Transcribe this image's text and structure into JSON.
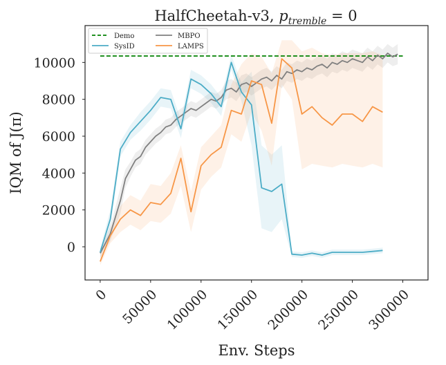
{
  "chart_data": {
    "type": "line",
    "title": "HalfCheetah-v3, p_tremble = 0",
    "title_text": "HalfCheetah-v3, ",
    "title_math_var": "p",
    "title_math_sub": "tremble",
    "title_math_rest": " = 0",
    "xlabel": "Env. Steps",
    "ylabel": "IQM of J(π)",
    "xlim": [
      -15000,
      325000
    ],
    "ylim": [
      -1800,
      12000
    ],
    "xticks": [
      0,
      50000,
      100000,
      150000,
      200000,
      250000,
      300000
    ],
    "xtick_labels": [
      "0",
      "50000",
      "100000",
      "150000",
      "200000",
      "250000",
      "300000"
    ],
    "yticks": [
      0,
      2000,
      4000,
      6000,
      8000,
      10000
    ],
    "ytick_labels": [
      "0",
      "2000",
      "4000",
      "6000",
      "8000",
      "10000"
    ],
    "grid": false,
    "legend_position": "top-left",
    "series": [
      {
        "name": "Demo",
        "color": "#008000",
        "style": "dashed",
        "x": [
          0,
          300000
        ],
        "y": [
          10350,
          10350
        ]
      },
      {
        "name": "MBPO",
        "color": "#7f7f7f",
        "style": "solid",
        "x": [
          0,
          10000,
          20000,
          25000,
          30000,
          35000,
          40000,
          45000,
          50000,
          55000,
          60000,
          65000,
          70000,
          75000,
          80000,
          85000,
          90000,
          95000,
          100000,
          105000,
          110000,
          115000,
          120000,
          125000,
          130000,
          135000,
          140000,
          145000,
          150000,
          155000,
          160000,
          165000,
          170000,
          175000,
          180000,
          185000,
          190000,
          195000,
          200000,
          205000,
          210000,
          215000,
          220000,
          225000,
          230000,
          235000,
          240000,
          245000,
          250000,
          255000,
          260000,
          265000,
          270000,
          275000,
          280000,
          285000,
          290000,
          295000
        ],
        "y": [
          -350,
          700,
          2500,
          3700,
          4200,
          4700,
          4900,
          5400,
          5700,
          6000,
          6200,
          6500,
          6600,
          6900,
          7100,
          7300,
          7500,
          7400,
          7600,
          7800,
          8000,
          7900,
          8100,
          8500,
          8600,
          8400,
          8800,
          8900,
          8700,
          8900,
          9100,
          9200,
          9000,
          9300,
          9100,
          9500,
          9400,
          9600,
          9500,
          9700,
          9600,
          9800,
          9900,
          9700,
          10000,
          9900,
          10100,
          10000,
          10200,
          10100,
          10000,
          10300,
          10100,
          10400,
          10200,
          10500,
          10300,
          10450
        ],
        "y_low": [
          -600,
          300,
          1800,
          3200,
          3800,
          4300,
          4500,
          5000,
          5300,
          5600,
          5800,
          6100,
          6200,
          6500,
          6700,
          6900,
          7100,
          7000,
          7200,
          7400,
          7600,
          7500,
          7700,
          8000,
          8100,
          7900,
          8300,
          8400,
          8200,
          8400,
          8600,
          8700,
          8500,
          8800,
          8600,
          9000,
          8900,
          9100,
          9000,
          9200,
          9100,
          9300,
          9400,
          9200,
          9500,
          9400,
          9600,
          9500,
          9700,
          9600,
          9500,
          9800,
          9600,
          9900,
          9700,
          10000,
          9800,
          9900
        ],
        "y_high": [
          -100,
          1100,
          3200,
          4200,
          4600,
          5100,
          5300,
          5800,
          6100,
          6400,
          6600,
          6900,
          7000,
          7300,
          7500,
          7700,
          7900,
          7800,
          8000,
          8200,
          8400,
          8300,
          8500,
          9000,
          9100,
          8900,
          9300,
          9400,
          9200,
          9400,
          9600,
          9700,
          9500,
          9800,
          9600,
          10000,
          9900,
          10100,
          10000,
          10200,
          10100,
          10300,
          10400,
          10200,
          10500,
          10400,
          10600,
          10500,
          10700,
          10600,
          10500,
          10800,
          10600,
          10900,
          10700,
          11000,
          10800,
          11000
        ]
      },
      {
        "name": "SysID",
        "color": "#4bacc6",
        "style": "solid",
        "x": [
          0,
          10000,
          20000,
          30000,
          40000,
          50000,
          60000,
          70000,
          80000,
          90000,
          100000,
          110000,
          120000,
          130000,
          140000,
          150000,
          160000,
          170000,
          180000,
          190000,
          200000,
          210000,
          220000,
          230000,
          240000,
          250000,
          260000,
          270000,
          280000
        ],
        "y": [
          -300,
          1500,
          5300,
          6200,
          6800,
          7400,
          8100,
          8000,
          6400,
          9100,
          8800,
          8300,
          7600,
          10000,
          8400,
          7700,
          3200,
          3000,
          3400,
          -400,
          -450,
          -350,
          -450,
          -300,
          -300,
          -300,
          -300,
          -250,
          -200
        ],
        "y_low": [
          -500,
          1000,
          4900,
          5800,
          6300,
          6900,
          7600,
          7500,
          5900,
          8600,
          8300,
          7800,
          7100,
          9600,
          7900,
          5500,
          1000,
          800,
          1500,
          -550,
          -600,
          -500,
          -600,
          -450,
          -450,
          -450,
          -450,
          -400,
          -350
        ],
        "y_high": [
          -100,
          2000,
          5700,
          6600,
          7300,
          7900,
          8600,
          8500,
          6900,
          9600,
          9300,
          8800,
          8100,
          10400,
          8900,
          9500,
          5500,
          5000,
          5500,
          -250,
          -300,
          -200,
          -300,
          -150,
          -150,
          -150,
          -150,
          -100,
          -50
        ]
      },
      {
        "name": "LAMPS",
        "color": "#f79646",
        "style": "solid",
        "x": [
          0,
          10000,
          20000,
          30000,
          40000,
          50000,
          60000,
          70000,
          80000,
          90000,
          100000,
          110000,
          120000,
          130000,
          140000,
          150000,
          160000,
          170000,
          180000,
          190000,
          200000,
          210000,
          220000,
          230000,
          240000,
          250000,
          260000,
          270000,
          280000
        ],
        "y": [
          -800,
          600,
          1500,
          2000,
          1700,
          2400,
          2300,
          2900,
          4800,
          1900,
          4400,
          5000,
          5400,
          7400,
          7200,
          9000,
          8800,
          6700,
          10200,
          9700,
          7200,
          7600,
          7000,
          6600,
          7200,
          7200,
          6800,
          7600,
          7300
        ],
        "y_low": [
          -1000,
          200,
          800,
          1200,
          900,
          1400,
          1300,
          1800,
          3300,
          800,
          3100,
          3800,
          4300,
          6100,
          5700,
          7300,
          6300,
          4400,
          8800,
          8000,
          4200,
          4500,
          4400,
          4300,
          4500,
          4400,
          4300,
          4500,
          4300
        ],
        "y_high": [
          -500,
          1000,
          2200,
          2800,
          2500,
          3400,
          3300,
          4000,
          5500,
          3000,
          5400,
          6000,
          6600,
          8800,
          9900,
          10500,
          10300,
          9400,
          11200,
          11200,
          10600,
          10800,
          10500,
          10400,
          10500,
          10500,
          10500,
          10600,
          10400
        ]
      }
    ]
  }
}
